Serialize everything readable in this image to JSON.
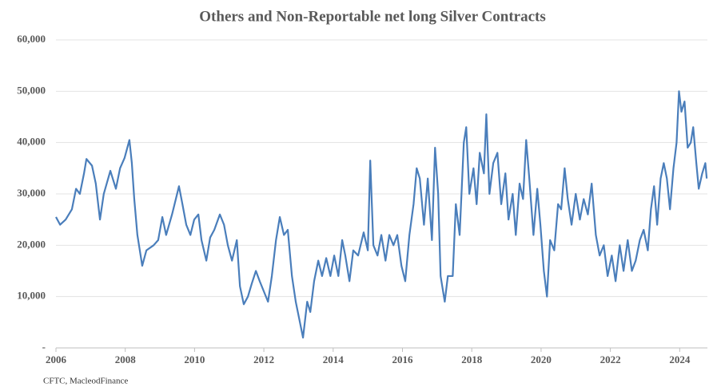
{
  "chart_data": {
    "type": "line",
    "title": "Others and Non-Reportable net long Silver Contracts",
    "source": "CFTC, MacleodFinance",
    "color": "#4a7ebb",
    "grid": true,
    "xlim": [
      2006,
      2024.8
    ],
    "xticks": [
      2006,
      2008,
      2010,
      2012,
      2014,
      2016,
      2018,
      2020,
      2022,
      2024
    ],
    "ylim": [
      0,
      60000
    ],
    "yticks": [
      {
        "value": 0,
        "label": "-"
      },
      {
        "value": 10000,
        "label": "10,000"
      },
      {
        "value": 20000,
        "label": "20,000"
      },
      {
        "value": 30000,
        "label": "30,000"
      },
      {
        "value": 40000,
        "label": "40,000"
      },
      {
        "value": 50000,
        "label": "50,000"
      },
      {
        "value": 60000,
        "label": "60,000"
      }
    ],
    "x": [
      2006.0,
      2006.12,
      2006.28,
      2006.46,
      2006.58,
      2006.69,
      2006.81,
      2006.88,
      2007.04,
      2007.15,
      2007.27,
      2007.38,
      2007.57,
      2007.73,
      2007.85,
      2007.98,
      2008.12,
      2008.19,
      2008.26,
      2008.35,
      2008.49,
      2008.61,
      2008.82,
      2008.95,
      2009.07,
      2009.18,
      2009.35,
      2009.46,
      2009.55,
      2009.65,
      2009.76,
      2009.88,
      2009.99,
      2010.11,
      2010.2,
      2010.34,
      2010.45,
      2010.57,
      2010.73,
      2010.85,
      2010.96,
      2011.08,
      2011.22,
      2011.31,
      2011.42,
      2011.54,
      2011.65,
      2011.77,
      2011.88,
      2012.0,
      2012.12,
      2012.23,
      2012.35,
      2012.46,
      2012.58,
      2012.69,
      2012.81,
      2012.92,
      2013.04,
      2013.13,
      2013.25,
      2013.34,
      2013.45,
      2013.57,
      2013.68,
      2013.8,
      2013.92,
      2014.03,
      2014.15,
      2014.26,
      2014.35,
      2014.47,
      2014.58,
      2014.72,
      2014.88,
      2015.0,
      2015.07,
      2015.16,
      2015.28,
      2015.39,
      2015.51,
      2015.62,
      2015.74,
      2015.85,
      2015.97,
      2016.08,
      2016.2,
      2016.32,
      2016.41,
      2016.5,
      2016.62,
      2016.73,
      2016.85,
      2016.94,
      2017.03,
      2017.1,
      2017.22,
      2017.31,
      2017.45,
      2017.54,
      2017.65,
      2017.77,
      2017.84,
      2017.93,
      2018.05,
      2018.14,
      2018.23,
      2018.35,
      2018.42,
      2018.51,
      2018.62,
      2018.74,
      2018.85,
      2018.97,
      2019.06,
      2019.18,
      2019.27,
      2019.38,
      2019.48,
      2019.57,
      2019.66,
      2019.78,
      2019.89,
      2019.98,
      2020.08,
      2020.17,
      2020.26,
      2020.38,
      2020.49,
      2020.58,
      2020.68,
      2020.77,
      2020.88,
      2021.0,
      2021.12,
      2021.23,
      2021.35,
      2021.46,
      2021.58,
      2021.69,
      2021.81,
      2021.92,
      2022.04,
      2022.15,
      2022.27,
      2022.38,
      2022.5,
      2022.62,
      2022.73,
      2022.85,
      2022.96,
      2023.08,
      2023.17,
      2023.26,
      2023.35,
      2023.45,
      2023.54,
      2023.63,
      2023.72,
      2023.82,
      2023.91,
      2023.98,
      2024.05,
      2024.14,
      2024.23,
      2024.32,
      2024.39,
      2024.48,
      2024.55,
      2024.65,
      2024.74,
      2024.78
    ],
    "values": [
      25500,
      24000,
      25000,
      27000,
      31000,
      30000,
      34000,
      36800,
      35500,
      32000,
      25000,
      30000,
      34500,
      31000,
      35000,
      37000,
      40500,
      36000,
      29000,
      22000,
      16000,
      19000,
      20000,
      21000,
      25500,
      22000,
      26000,
      29000,
      31500,
      28000,
      24000,
      22000,
      25000,
      26000,
      21000,
      17000,
      21500,
      23000,
      26000,
      24000,
      20000,
      17000,
      21000,
      12000,
      8500,
      10000,
      12500,
      15000,
      13000,
      11000,
      9000,
      14000,
      21000,
      25500,
      22000,
      23000,
      14000,
      9000,
      5000,
      2000,
      9000,
      7000,
      13000,
      17000,
      14000,
      17500,
      14000,
      18000,
      14000,
      21000,
      18000,
      13000,
      19000,
      18000,
      22500,
      19000,
      36500,
      20000,
      18000,
      22000,
      17000,
      22000,
      20000,
      22000,
      16000,
      13000,
      22000,
      28000,
      35000,
      33000,
      24000,
      33000,
      21000,
      39000,
      30000,
      14000,
      9000,
      14000,
      14000,
      28000,
      22000,
      40000,
      43000,
      30000,
      35000,
      28000,
      38000,
      34000,
      45500,
      30000,
      36000,
      38000,
      28000,
      34000,
      25000,
      30000,
      22000,
      32000,
      29000,
      40500,
      33000,
      22000,
      31000,
      24000,
      15000,
      10000,
      21000,
      19000,
      28000,
      27000,
      35000,
      29000,
      24000,
      30000,
      25000,
      29000,
      26000,
      32000,
      22000,
      18000,
      20000,
      14000,
      18000,
      13000,
      20000,
      15000,
      21000,
      15000,
      17000,
      21000,
      23000,
      19000,
      27000,
      31500,
      24000,
      33000,
      36000,
      33000,
      27000,
      35000,
      40000,
      50000,
      46000,
      48000,
      39000,
      40000,
      43000,
      36000,
      31000,
      34000,
      36000,
      33000
    ]
  }
}
